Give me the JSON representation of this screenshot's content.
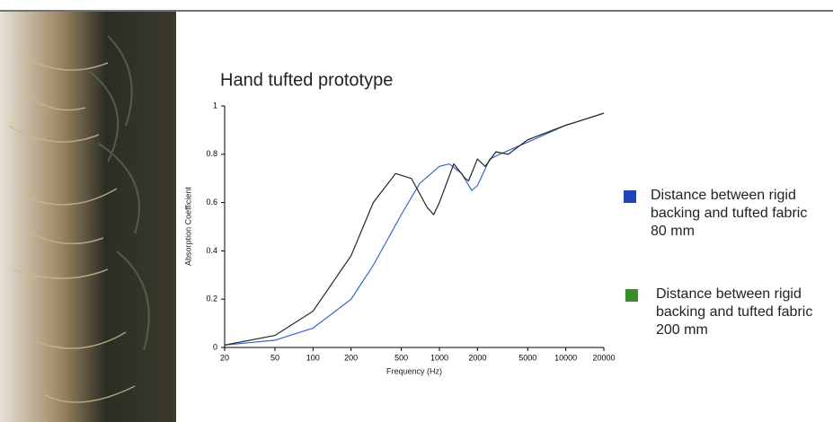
{
  "chart_data": {
    "type": "line",
    "title": "Hand tufted prototype",
    "x_label": "Frequency (Hz)",
    "y_label": "Absorption Coefficient",
    "log_x": true,
    "xlim": [
      20,
      20000
    ],
    "xticks": [
      20,
      50,
      100,
      200,
      500,
      1000,
      2000,
      5000,
      10000,
      20000
    ],
    "ylim": [
      0,
      1
    ],
    "yticks": [
      0,
      0.2,
      0.4,
      0.6,
      0.8,
      1
    ],
    "series": [
      {
        "name": "Distance between rigid backing and tufted fabric 80 mm",
        "color": "#1f45b8",
        "line_color": "#3a64d0",
        "x": [
          20,
          50,
          100,
          200,
          300,
          500,
          700,
          1000,
          1200,
          1500,
          1800,
          2000,
          2500,
          3000,
          5000,
          10000,
          20000
        ],
        "values": [
          0.01,
          0.03,
          0.08,
          0.2,
          0.34,
          0.55,
          0.68,
          0.75,
          0.76,
          0.72,
          0.65,
          0.67,
          0.78,
          0.8,
          0.85,
          0.92,
          0.97
        ]
      },
      {
        "name": "Distance between rigid backing and tufted fabric 200 mm",
        "color": "#3c8a2e",
        "line_color": "#222a18",
        "x": [
          20,
          50,
          100,
          200,
          300,
          450,
          600,
          800,
          900,
          1000,
          1300,
          1600,
          1700,
          2000,
          2300,
          2800,
          3500,
          5000,
          10000,
          20000
        ],
        "values": [
          0.01,
          0.05,
          0.15,
          0.38,
          0.6,
          0.72,
          0.7,
          0.58,
          0.55,
          0.6,
          0.76,
          0.7,
          0.69,
          0.78,
          0.75,
          0.81,
          0.8,
          0.86,
          0.92,
          0.97
        ]
      }
    ]
  }
}
